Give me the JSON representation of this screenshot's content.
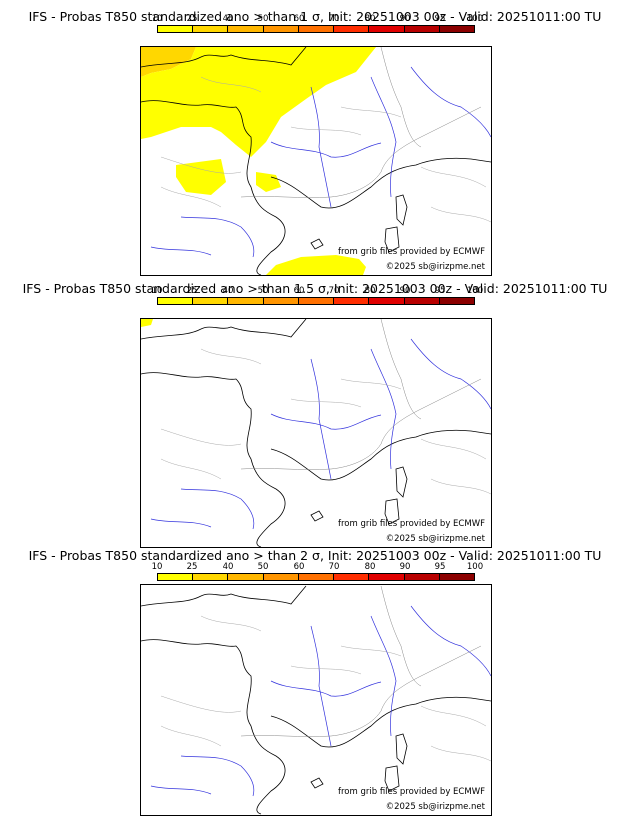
{
  "colorbar": {
    "labels": [
      "10",
      "25",
      "40",
      "50",
      "60",
      "70",
      "80",
      "90",
      "95",
      "100"
    ],
    "colors": [
      "#ffff00",
      "#ffd700",
      "#ffb700",
      "#ff9500",
      "#ff7000",
      "#ff2d00",
      "#e00000",
      "#b80000",
      "#8b0000"
    ]
  },
  "credits": {
    "source": "from grib files provided by ECMWF",
    "copyright": "©2025 sb@irizpme.net"
  },
  "panels": [
    {
      "title": "IFS - Probas T850  standardized ano > than 1 σ, Init: 20251003 00z - Valid: 20251011:00 TU",
      "threshold_sigma": 1,
      "shading_levels": [
        "10-25",
        "25-40"
      ]
    },
    {
      "title": "IFS - Probas T850  standardized ano > than 1.5 σ, Init: 20251003 00z - Valid: 20251011:00 TU",
      "threshold_sigma": 1.5,
      "shading_levels": [
        "10-25"
      ]
    },
    {
      "title": "IFS - Probas T850  standardized ano > than 2 σ, Init: 20251003 00z - Valid: 20251011:00 TU",
      "threshold_sigma": 2,
      "shading_levels": []
    }
  ]
}
